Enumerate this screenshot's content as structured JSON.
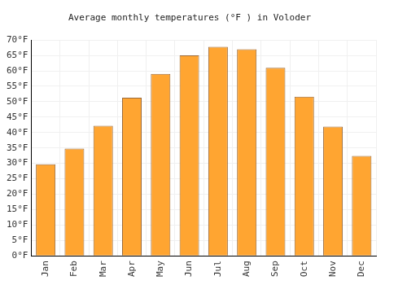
{
  "chart_data": {
    "type": "bar",
    "title": "Average monthly temperatures (°F ) in Voloder",
    "categories": [
      "Jan",
      "Feb",
      "Mar",
      "Apr",
      "May",
      "Jun",
      "Jul",
      "Aug",
      "Sep",
      "Oct",
      "Nov",
      "Dec"
    ],
    "values": [
      29.7,
      34.8,
      42.2,
      51.3,
      59.0,
      65.0,
      67.8,
      67.0,
      61.0,
      51.6,
      41.9,
      32.4
    ],
    "color": "#ffa531",
    "ylim": [
      0,
      70
    ],
    "yticks": [
      {
        "value": 0,
        "label": "0°F"
      },
      {
        "value": 5,
        "label": "5°F"
      },
      {
        "value": 10,
        "label": "10°F"
      },
      {
        "value": 15,
        "label": "15°F"
      },
      {
        "value": 20,
        "label": "20°F"
      },
      {
        "value": 25,
        "label": "25°F"
      },
      {
        "value": 30,
        "label": "30°F"
      },
      {
        "value": 35,
        "label": "35°F"
      },
      {
        "value": 40,
        "label": "40°F"
      },
      {
        "value": 45,
        "label": "45°F"
      },
      {
        "value": 50,
        "label": "50°F"
      },
      {
        "value": 55,
        "label": "55°F"
      },
      {
        "value": 60,
        "label": "60°F"
      },
      {
        "value": 65,
        "label": "65°F"
      },
      {
        "value": 70,
        "label": "70°F"
      }
    ],
    "grid": true
  }
}
